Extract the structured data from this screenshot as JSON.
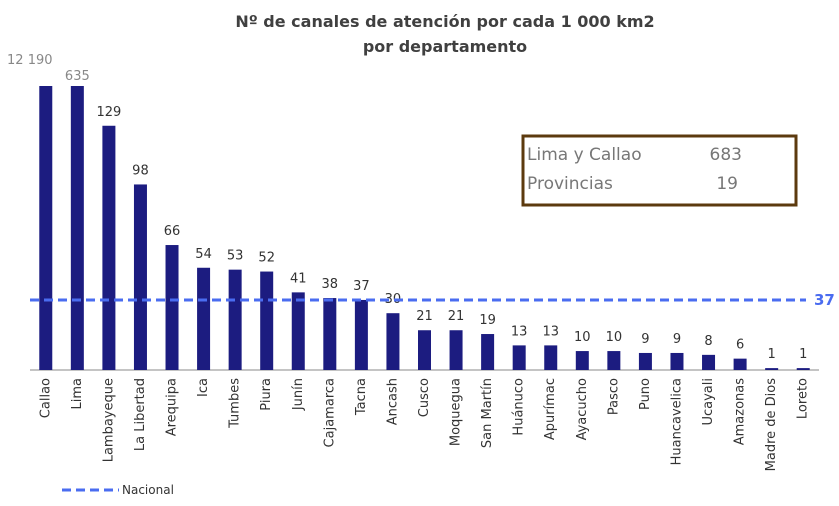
{
  "chart_data": {
    "type": "bar",
    "title": [
      "Nº de canales de atención por cada 1 000 km2",
      "por departamento"
    ],
    "categories": [
      "Callao",
      "Lima",
      "Lambayeque",
      "La Libertad",
      "Arequipa",
      "Ica",
      "Tumbes",
      "Piura",
      "Junín",
      "Cajamarca",
      "Tacna",
      "Ancash",
      "Cusco",
      "Moquegua",
      "San Martín",
      "Huánuco",
      "Apurímac",
      "Ayacucho",
      "Pasco",
      "Puno",
      "Huancavelica",
      "Ucayali",
      "Amazonas",
      "Madre de Dios",
      "Loreto"
    ],
    "values": [
      12190,
      635,
      129,
      98,
      66,
      54,
      53,
      52,
      41,
      38,
      37,
      30,
      21,
      21,
      19,
      13,
      13,
      10,
      10,
      9,
      9,
      8,
      6,
      1,
      1
    ],
    "value_labels": [
      "12 190",
      "635",
      "129",
      "98",
      "66",
      "54",
      "53",
      "52",
      "41",
      "38",
      "37",
      "30",
      "21",
      "21",
      "19",
      "13",
      "13",
      "10",
      "10",
      "9",
      "9",
      "8",
      "6",
      "1",
      "1"
    ],
    "color": "#1c1c80",
    "ylim": [
      0,
      150
    ],
    "reference_line": {
      "name": "Nacional",
      "value": 37,
      "color": "#4a6cf0"
    },
    "summary_box": {
      "rows": [
        [
          "Lima y Callao",
          "683"
        ],
        [
          "Provincias",
          "19"
        ]
      ]
    }
  }
}
